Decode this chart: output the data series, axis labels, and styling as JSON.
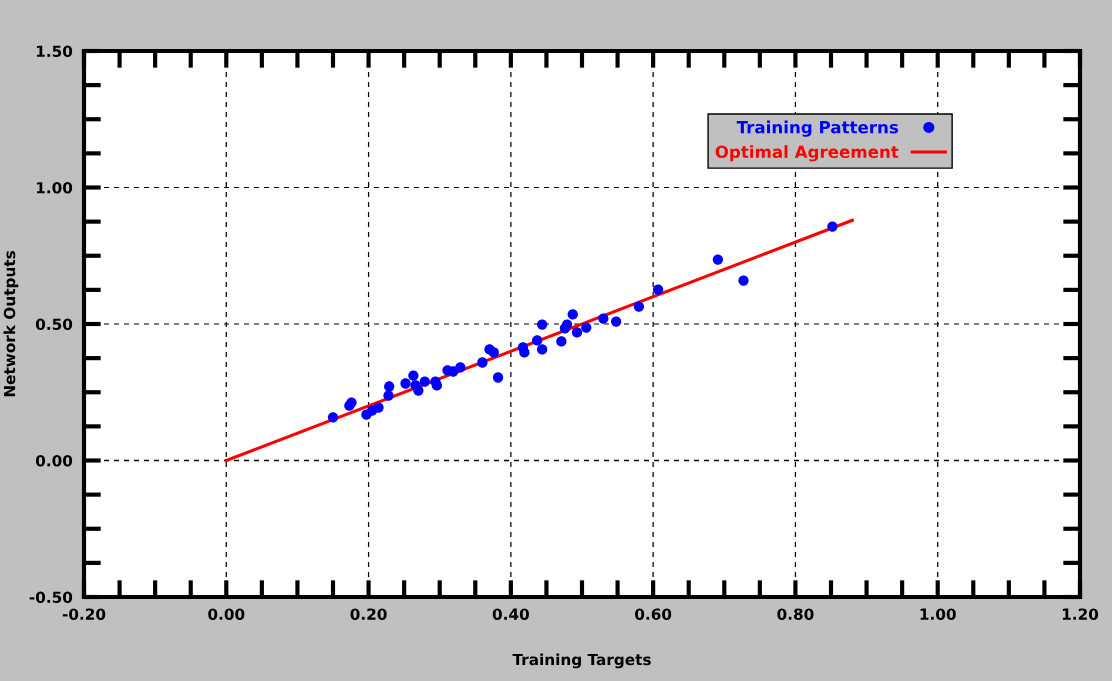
{
  "chart_data": {
    "type": "scatter",
    "xlabel": "Training Targets",
    "ylabel": "Network Outputs",
    "xlim": [
      -0.2,
      1.2
    ],
    "xticks": [
      {
        "value": -0.2,
        "label": "-0.20"
      },
      {
        "value": 0,
        "label": "0.00"
      },
      {
        "value": 0.2,
        "label": "0.20"
      },
      {
        "value": 0.4,
        "label": "0.40"
      },
      {
        "value": 0.6,
        "label": "0.60"
      },
      {
        "value": 0.8,
        "label": "0.80"
      },
      {
        "value": 1.0,
        "label": "1.00"
      },
      {
        "value": 1.2,
        "label": "1.20"
      }
    ],
    "ylim": [
      -0.5,
      1.5
    ],
    "yticks": [
      {
        "value": -0.5,
        "label": "-0.50"
      },
      {
        "value": 0,
        "label": "0.00"
      },
      {
        "value": 0.5,
        "label": "0.50"
      },
      {
        "value": 1.0,
        "label": "1.00"
      },
      {
        "value": 1.5,
        "label": "1.50"
      }
    ],
    "grid": true,
    "legend": "top right",
    "marker": "circle",
    "series": [
      {
        "name": "Training Patterns",
        "color": "#0000ff",
        "x": [
          0.15,
          0.173,
          0.176,
          0.197,
          0.205,
          0.214,
          0.228,
          0.229,
          0.252,
          0.263,
          0.266,
          0.27,
          0.279,
          0.294,
          0.296,
          0.311,
          0.319,
          0.329,
          0.36,
          0.37,
          0.376,
          0.382,
          0.417,
          0.419,
          0.437,
          0.444,
          0.444,
          0.471,
          0.476,
          0.479,
          0.487,
          0.493,
          0.506,
          0.53,
          0.548,
          0.58,
          0.607,
          0.691,
          0.727,
          0.852
        ],
        "values": [
          0.158,
          0.201,
          0.212,
          0.168,
          0.183,
          0.194,
          0.238,
          0.271,
          0.282,
          0.311,
          0.275,
          0.256,
          0.289,
          0.289,
          0.275,
          0.33,
          0.326,
          0.341,
          0.359,
          0.407,
          0.396,
          0.304,
          0.414,
          0.396,
          0.44,
          0.498,
          0.407,
          0.436,
          0.484,
          0.498,
          0.535,
          0.469,
          0.487,
          0.52,
          0.509,
          0.564,
          0.626,
          0.736,
          0.659,
          0.857
        ]
      },
      {
        "name": "Optimal Agreement",
        "type": "line",
        "color": "#ff0000",
        "marker": "none",
        "line_style": "solid",
        "x": [
          0,
          0.88
        ],
        "values": [
          0,
          0.88
        ]
      }
    ]
  }
}
